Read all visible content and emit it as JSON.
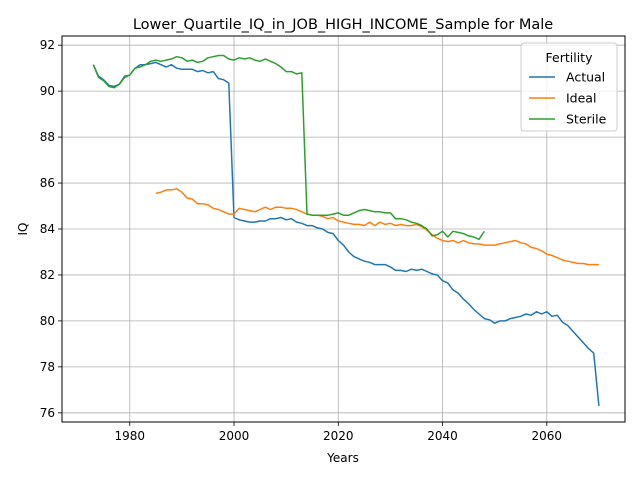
{
  "chart_data": {
    "type": "line",
    "title": "Lower_Quartile_IQ_in_JOB_HIGH_INCOME_Sample for Male",
    "xlabel": "Years",
    "ylabel": "IQ",
    "xlim": [
      1967,
      2075
    ],
    "ylim": [
      75.6,
      92.4
    ],
    "xticks": [
      1980,
      2000,
      2020,
      2040,
      2060
    ],
    "yticks": [
      76,
      78,
      80,
      82,
      84,
      86,
      88,
      90,
      92
    ],
    "grid": true,
    "legend": {
      "title": "Fertility",
      "placement": "top-right"
    },
    "series": [
      {
        "name": "Actual",
        "color": "#1f77b4",
        "points": [
          [
            1973,
            91.15
          ],
          [
            1974,
            90.65
          ],
          [
            1975,
            90.5
          ],
          [
            1976,
            90.25
          ],
          [
            1977,
            90.2
          ],
          [
            1978,
            90.3
          ],
          [
            1979,
            90.65
          ],
          [
            1980,
            90.7
          ],
          [
            1981,
            91.0
          ],
          [
            1982,
            91.15
          ],
          [
            1983,
            91.15
          ],
          [
            1984,
            91.2
          ],
          [
            1985,
            91.25
          ],
          [
            1986,
            91.15
          ],
          [
            1987,
            91.05
          ],
          [
            1988,
            91.15
          ],
          [
            1989,
            91.0
          ],
          [
            1990,
            90.95
          ],
          [
            1991,
            90.95
          ],
          [
            1992,
            90.95
          ],
          [
            1993,
            90.85
          ],
          [
            1994,
            90.9
          ],
          [
            1995,
            90.8
          ],
          [
            1996,
            90.85
          ],
          [
            1997,
            90.55
          ],
          [
            1998,
            90.5
          ],
          [
            1999,
            90.35
          ],
          [
            2000,
            84.5
          ],
          [
            2001,
            84.4
          ],
          [
            2002,
            84.35
          ],
          [
            2003,
            84.3
          ],
          [
            2004,
            84.3
          ],
          [
            2005,
            84.35
          ],
          [
            2006,
            84.35
          ],
          [
            2007,
            84.45
          ],
          [
            2008,
            84.45
          ],
          [
            2009,
            84.5
          ],
          [
            2010,
            84.4
          ],
          [
            2011,
            84.45
          ],
          [
            2012,
            84.3
          ],
          [
            2013,
            84.25
          ],
          [
            2014,
            84.15
          ],
          [
            2015,
            84.15
          ],
          [
            2016,
            84.05
          ],
          [
            2017,
            84.0
          ],
          [
            2018,
            83.85
          ],
          [
            2019,
            83.8
          ],
          [
            2020,
            83.5
          ],
          [
            2021,
            83.3
          ],
          [
            2022,
            83.0
          ],
          [
            2023,
            82.8
          ],
          [
            2024,
            82.7
          ],
          [
            2025,
            82.6
          ],
          [
            2026,
            82.55
          ],
          [
            2027,
            82.45
          ],
          [
            2028,
            82.45
          ],
          [
            2029,
            82.45
          ],
          [
            2030,
            82.35
          ],
          [
            2031,
            82.2
          ],
          [
            2032,
            82.2
          ],
          [
            2033,
            82.15
          ],
          [
            2034,
            82.25
          ],
          [
            2035,
            82.2
          ],
          [
            2036,
            82.25
          ],
          [
            2037,
            82.15
          ],
          [
            2038,
            82.05
          ],
          [
            2039,
            82.0
          ],
          [
            2040,
            81.75
          ],
          [
            2041,
            81.65
          ],
          [
            2042,
            81.35
          ],
          [
            2043,
            81.2
          ],
          [
            2044,
            80.95
          ],
          [
            2045,
            80.75
          ],
          [
            2046,
            80.5
          ],
          [
            2047,
            80.3
          ],
          [
            2048,
            80.1
          ],
          [
            2049,
            80.05
          ],
          [
            2050,
            79.9
          ],
          [
            2051,
            80.0
          ],
          [
            2052,
            80.0
          ],
          [
            2053,
            80.1
          ],
          [
            2054,
            80.15
          ],
          [
            2055,
            80.2
          ],
          [
            2056,
            80.3
          ],
          [
            2057,
            80.25
          ],
          [
            2058,
            80.4
          ],
          [
            2059,
            80.3
          ],
          [
            2060,
            80.4
          ],
          [
            2061,
            80.2
          ],
          [
            2062,
            80.25
          ],
          [
            2063,
            79.95
          ],
          [
            2064,
            79.8
          ],
          [
            2065,
            79.55
          ],
          [
            2066,
            79.3
          ],
          [
            2067,
            79.05
          ],
          [
            2068,
            78.8
          ],
          [
            2069,
            78.6
          ],
          [
            2070,
            76.3
          ]
        ]
      },
      {
        "name": "Ideal",
        "color": "#ff7f0e",
        "points": [
          [
            1985,
            85.55
          ],
          [
            1986,
            85.6
          ],
          [
            1987,
            85.7
          ],
          [
            1988,
            85.7
          ],
          [
            1989,
            85.75
          ],
          [
            1990,
            85.6
          ],
          [
            1991,
            85.35
          ],
          [
            1992,
            85.3
          ],
          [
            1993,
            85.1
          ],
          [
            1994,
            85.1
          ],
          [
            1995,
            85.05
          ],
          [
            1996,
            84.9
          ],
          [
            1997,
            84.85
          ],
          [
            1998,
            84.75
          ],
          [
            1999,
            84.65
          ],
          [
            2000,
            84.65
          ],
          [
            2001,
            84.9
          ],
          [
            2002,
            84.85
          ],
          [
            2003,
            84.8
          ],
          [
            2004,
            84.75
          ],
          [
            2005,
            84.85
          ],
          [
            2006,
            84.95
          ],
          [
            2007,
            84.85
          ],
          [
            2008,
            84.95
          ],
          [
            2009,
            84.95
          ],
          [
            2010,
            84.9
          ],
          [
            2011,
            84.9
          ],
          [
            2012,
            84.85
          ],
          [
            2013,
            84.75
          ],
          [
            2014,
            84.65
          ],
          [
            2015,
            84.6
          ],
          [
            2016,
            84.6
          ],
          [
            2017,
            84.55
          ],
          [
            2018,
            84.45
          ],
          [
            2019,
            84.5
          ],
          [
            2020,
            84.35
          ],
          [
            2021,
            84.3
          ],
          [
            2022,
            84.25
          ],
          [
            2023,
            84.2
          ],
          [
            2024,
            84.2
          ],
          [
            2025,
            84.15
          ],
          [
            2026,
            84.3
          ],
          [
            2027,
            84.15
          ],
          [
            2028,
            84.3
          ],
          [
            2029,
            84.2
          ],
          [
            2030,
            84.25
          ],
          [
            2031,
            84.15
          ],
          [
            2032,
            84.2
          ],
          [
            2033,
            84.15
          ],
          [
            2034,
            84.15
          ],
          [
            2035,
            84.2
          ],
          [
            2036,
            84.1
          ],
          [
            2037,
            83.95
          ],
          [
            2038,
            83.75
          ],
          [
            2039,
            83.6
          ],
          [
            2040,
            83.5
          ],
          [
            2041,
            83.45
          ],
          [
            2042,
            83.5
          ],
          [
            2043,
            83.4
          ],
          [
            2044,
            83.5
          ],
          [
            2045,
            83.4
          ],
          [
            2046,
            83.35
          ],
          [
            2047,
            83.35
          ],
          [
            2048,
            83.3
          ],
          [
            2049,
            83.3
          ],
          [
            2050,
            83.3
          ],
          [
            2051,
            83.35
          ],
          [
            2052,
            83.4
          ],
          [
            2053,
            83.45
          ],
          [
            2054,
            83.5
          ],
          [
            2055,
            83.4
          ],
          [
            2056,
            83.35
          ],
          [
            2057,
            83.2
          ],
          [
            2058,
            83.15
          ],
          [
            2059,
            83.05
          ],
          [
            2060,
            82.9
          ],
          [
            2061,
            82.85
          ],
          [
            2062,
            82.75
          ],
          [
            2063,
            82.65
          ],
          [
            2064,
            82.6
          ],
          [
            2065,
            82.55
          ],
          [
            2066,
            82.5
          ],
          [
            2067,
            82.5
          ],
          [
            2068,
            82.45
          ],
          [
            2069,
            82.45
          ],
          [
            2070,
            82.45
          ]
        ]
      },
      {
        "name": "Sterile",
        "color": "#2ca02c",
        "points": [
          [
            1973,
            91.15
          ],
          [
            1974,
            90.6
          ],
          [
            1975,
            90.45
          ],
          [
            1976,
            90.2
          ],
          [
            1977,
            90.15
          ],
          [
            1978,
            90.3
          ],
          [
            1979,
            90.6
          ],
          [
            1980,
            90.7
          ],
          [
            1981,
            91.0
          ],
          [
            1982,
            91.05
          ],
          [
            1983,
            91.15
          ],
          [
            1984,
            91.3
          ],
          [
            1985,
            91.35
          ],
          [
            1986,
            91.3
          ],
          [
            1987,
            91.35
          ],
          [
            1988,
            91.4
          ],
          [
            1989,
            91.5
          ],
          [
            1990,
            91.45
          ],
          [
            1991,
            91.3
          ],
          [
            1992,
            91.35
          ],
          [
            1993,
            91.25
          ],
          [
            1994,
            91.3
          ],
          [
            1995,
            91.45
          ],
          [
            1996,
            91.5
          ],
          [
            1997,
            91.55
          ],
          [
            1998,
            91.55
          ],
          [
            1999,
            91.4
          ],
          [
            2000,
            91.35
          ],
          [
            2001,
            91.45
          ],
          [
            2002,
            91.4
          ],
          [
            2003,
            91.45
          ],
          [
            2004,
            91.35
          ],
          [
            2005,
            91.3
          ],
          [
            2006,
            91.4
          ],
          [
            2007,
            91.3
          ],
          [
            2008,
            91.2
          ],
          [
            2009,
            91.05
          ],
          [
            2010,
            90.85
          ],
          [
            2011,
            90.85
          ],
          [
            2012,
            90.75
          ],
          [
            2013,
            90.8
          ],
          [
            2014,
            84.65
          ],
          [
            2015,
            84.6
          ],
          [
            2016,
            84.6
          ],
          [
            2017,
            84.6
          ],
          [
            2018,
            84.6
          ],
          [
            2019,
            84.65
          ],
          [
            2020,
            84.7
          ],
          [
            2021,
            84.6
          ],
          [
            2022,
            84.6
          ],
          [
            2023,
            84.7
          ],
          [
            2024,
            84.8
          ],
          [
            2025,
            84.85
          ],
          [
            2026,
            84.8
          ],
          [
            2027,
            84.75
          ],
          [
            2028,
            84.75
          ],
          [
            2029,
            84.7
          ],
          [
            2030,
            84.7
          ],
          [
            2031,
            84.45
          ],
          [
            2032,
            84.45
          ],
          [
            2033,
            84.4
          ],
          [
            2034,
            84.3
          ],
          [
            2035,
            84.25
          ],
          [
            2036,
            84.15
          ],
          [
            2037,
            84.0
          ],
          [
            2038,
            83.7
          ],
          [
            2039,
            83.75
          ],
          [
            2040,
            83.9
          ],
          [
            2041,
            83.65
          ],
          [
            2042,
            83.9
          ],
          [
            2043,
            83.85
          ],
          [
            2044,
            83.8
          ],
          [
            2045,
            83.7
          ],
          [
            2046,
            83.65
          ],
          [
            2047,
            83.55
          ],
          [
            2048,
            83.9
          ]
        ]
      }
    ]
  }
}
